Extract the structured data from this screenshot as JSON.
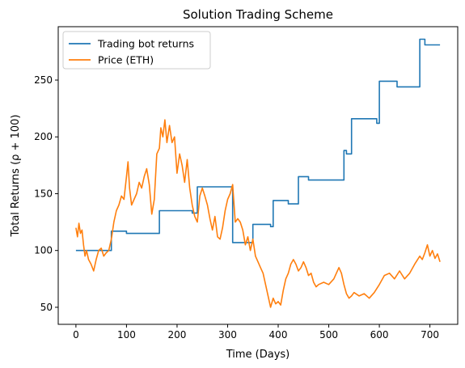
{
  "chart_data": {
    "type": "line",
    "title": "Solution Trading Scheme",
    "xlabel": "Time (Days)",
    "ylabel": "Total Returns (ρ + 100)",
    "xlim": [
      -35,
      755
    ],
    "ylim": [
      35,
      297
    ],
    "x_ticks": [
      0,
      100,
      200,
      300,
      400,
      500,
      600,
      700
    ],
    "y_ticks": [
      50,
      100,
      150,
      200,
      250
    ],
    "grid": false,
    "legend_position": "top-left",
    "series": [
      {
        "name": "Trading bot returns",
        "color": "#1f77b4",
        "step": true,
        "x": [
          0,
          70,
          70,
          100,
          100,
          165,
          165,
          230,
          230,
          240,
          240,
          310,
          310,
          350,
          350,
          385,
          385,
          390,
          390,
          420,
          420,
          440,
          440,
          460,
          460,
          530,
          530,
          535,
          535,
          545,
          545,
          595,
          595,
          600,
          600,
          635,
          635,
          680,
          680,
          690,
          690,
          720
        ],
        "y": [
          100,
          100,
          117,
          117,
          115,
          115,
          135,
          135,
          133,
          133,
          156,
          156,
          107,
          107,
          123,
          123,
          121,
          121,
          144,
          144,
          141,
          141,
          165,
          165,
          162,
          162,
          188,
          188,
          185,
          185,
          216,
          216,
          212,
          212,
          249,
          249,
          244,
          244,
          286,
          286,
          281,
          281
        ]
      },
      {
        "name": "Price (ETH)",
        "color": "#ff7f0e",
        "step": false,
        "x": [
          0,
          3,
          6,
          9,
          12,
          15,
          18,
          21,
          25,
          30,
          35,
          40,
          45,
          50,
          55,
          60,
          65,
          70,
          75,
          80,
          85,
          90,
          95,
          100,
          103,
          106,
          110,
          115,
          120,
          125,
          130,
          135,
          140,
          145,
          150,
          155,
          160,
          165,
          168,
          172,
          176,
          180,
          185,
          190,
          195,
          200,
          205,
          210,
          215,
          220,
          225,
          230,
          235,
          240,
          245,
          250,
          255,
          260,
          265,
          270,
          275,
          280,
          285,
          290,
          295,
          300,
          305,
          310,
          315,
          320,
          325,
          330,
          335,
          340,
          345,
          350,
          355,
          360,
          365,
          370,
          375,
          380,
          385,
          390,
          395,
          400,
          405,
          410,
          415,
          420,
          425,
          430,
          435,
          440,
          445,
          450,
          455,
          460,
          465,
          470,
          475,
          480,
          490,
          500,
          510,
          520,
          525,
          530,
          535,
          540,
          545,
          550,
          560,
          570,
          580,
          590,
          600,
          610,
          620,
          630,
          640,
          650,
          660,
          670,
          680,
          685,
          690,
          695,
          700,
          705,
          710,
          715,
          720
        ],
        "y": [
          120,
          112,
          124,
          115,
          118,
          105,
          95,
          100,
          92,
          88,
          82,
          92,
          100,
          102,
          95,
          98,
          100,
          110,
          125,
          135,
          140,
          148,
          145,
          165,
          178,
          155,
          140,
          145,
          150,
          160,
          155,
          165,
          172,
          158,
          132,
          145,
          185,
          190,
          208,
          200,
          215,
          195,
          210,
          195,
          200,
          168,
          185,
          175,
          160,
          180,
          155,
          140,
          130,
          125,
          148,
          155,
          148,
          140,
          128,
          118,
          130,
          112,
          110,
          120,
          135,
          145,
          150,
          158,
          125,
          128,
          125,
          118,
          105,
          112,
          100,
          110,
          95,
          90,
          85,
          80,
          70,
          60,
          50,
          58,
          53,
          55,
          52,
          65,
          75,
          80,
          88,
          92,
          88,
          82,
          85,
          90,
          85,
          78,
          80,
          72,
          68,
          70,
          72,
          70,
          75,
          85,
          80,
          70,
          62,
          58,
          60,
          63,
          60,
          62,
          58,
          63,
          70,
          78,
          80,
          75,
          82,
          75,
          80,
          88,
          95,
          92,
          98,
          105,
          95,
          100,
          93,
          97,
          90
        ]
      }
    ]
  }
}
